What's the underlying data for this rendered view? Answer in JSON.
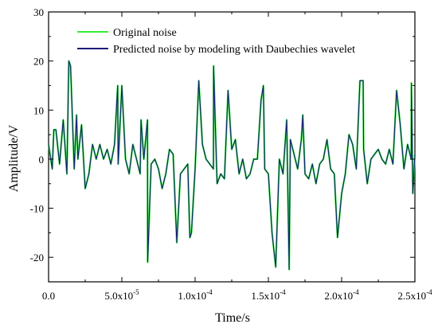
{
  "chart_data": {
    "type": "line",
    "xlabel": "Time/s",
    "ylabel": "Amplitude/V",
    "xlim": [
      0,
      0.00025
    ],
    "ylim": [
      -25,
      30
    ],
    "x_ticks": [
      {
        "value": 0,
        "label": "0.0",
        "mantissa": "",
        "exponent": ""
      },
      {
        "value": 5e-05,
        "label": "5.0x10-5",
        "mantissa": "5.0x10",
        "exponent": "-5"
      },
      {
        "value": 0.0001,
        "label": "1.0x10-4",
        "mantissa": "1.0x10",
        "exponent": "-4"
      },
      {
        "value": 0.00015,
        "label": "1.5x10-4",
        "mantissa": "1.5x10",
        "exponent": "-4"
      },
      {
        "value": 0.0002,
        "label": "2.0x10-4",
        "mantissa": "2.0x10",
        "exponent": "-4"
      },
      {
        "value": 0.00025,
        "label": "2.5x10-4",
        "mantissa": "2.5x10",
        "exponent": "-4"
      }
    ],
    "y_ticks": [
      {
        "value": 30,
        "label": "30"
      },
      {
        "value": 20,
        "label": "20"
      },
      {
        "value": 10,
        "label": "10"
      },
      {
        "value": 0,
        "label": "0"
      },
      {
        "value": -10,
        "label": "-10"
      },
      {
        "value": -20,
        "label": "-20"
      }
    ],
    "grid": false,
    "legend": "top-left",
    "series": [
      {
        "name": "Original noise",
        "color": "#33ee33",
        "x_start": 0,
        "x_step": 2.5e-06,
        "values": [
          3,
          -2,
          6,
          -1,
          8,
          -3,
          19,
          -2,
          0,
          7,
          -6,
          -3,
          3,
          0,
          3,
          0,
          2,
          -1,
          3,
          -1,
          15,
          0,
          -3,
          3,
          0,
          -3,
          0,
          8,
          -1,
          0,
          -2,
          -6,
          -3,
          2,
          1,
          -17,
          -3,
          -2,
          -1,
          -15,
          -2,
          16,
          3,
          0,
          -1,
          -2,
          -5,
          -3,
          -4,
          14,
          2,
          4,
          -3,
          0,
          -4,
          -3,
          0,
          0,
          12,
          -2,
          -3,
          -15,
          -22,
          0,
          -3,
          8,
          4,
          1,
          -2,
          4,
          -3,
          -4,
          -1,
          -5,
          -1,
          0,
          4,
          -2,
          -3,
          -15,
          -7,
          -3,
          5,
          3,
          -2,
          16,
          2,
          -5,
          0,
          1,
          2,
          0,
          -1,
          2,
          -1,
          14,
          7,
          -2,
          3,
          0,
          1
        ],
        "peaks": [
          {
            "x": 3.6e-06,
            "y": 6
          },
          {
            "x": 1.38e-05,
            "y": 20
          },
          {
            "x": 1.91e-05,
            "y": 9
          },
          {
            "x": 4.72e-05,
            "y": 15
          },
          {
            "x": 6.31e-05,
            "y": 8
          },
          {
            "x": 6.76e-05,
            "y": -21
          },
          {
            "x": 9.64e-05,
            "y": -16
          },
          {
            "x": 0.0001126,
            "y": 19
          },
          {
            "x": 0.0001278,
            "y": 3
          },
          {
            "x": 0.0001466,
            "y": 15
          },
          {
            "x": 0.0001642,
            "y": -22.5
          },
          {
            "x": 0.0001735,
            "y": 9
          },
          {
            "x": 0.0001972,
            "y": -16
          },
          {
            "x": 0.0002147,
            "y": 16
          },
          {
            "x": 0.0002476,
            "y": 15.5
          },
          {
            "x": 0.0002486,
            "y": -7
          }
        ]
      },
      {
        "name": "Predicted noise by modeling with Daubechies wavelet",
        "color": "#1a1a7a",
        "x_start": 0,
        "x_step": 2.5e-06,
        "values": [
          3,
          -2,
          6,
          -1,
          8,
          -3,
          19,
          -2,
          0,
          7,
          -6,
          -3,
          3,
          0,
          3,
          0,
          2,
          -1,
          3,
          -1,
          15,
          0,
          -3,
          3,
          0,
          -3,
          0,
          8,
          -1,
          0,
          -2,
          -6,
          -3,
          2,
          1,
          -17,
          -3,
          -2,
          -1,
          -15,
          -2,
          16,
          3,
          0,
          -1,
          -2,
          -5,
          -3,
          -4,
          14,
          2,
          4,
          -3,
          0,
          -4,
          -3,
          0,
          0,
          12,
          -2,
          -3,
          -15,
          -22,
          0,
          -3,
          8,
          4,
          1,
          -2,
          4,
          -3,
          -4,
          -1,
          -5,
          -1,
          0,
          4,
          -2,
          -3,
          -15,
          -7,
          -3,
          5,
          3,
          -2,
          16,
          2,
          -5,
          0,
          1,
          2,
          0,
          -1,
          2,
          -1,
          14,
          7,
          -2,
          3,
          0,
          1
        ],
        "peaks": [
          {
            "x": 3.6e-06,
            "y": 6
          },
          {
            "x": 1.38e-05,
            "y": 20
          },
          {
            "x": 1.91e-05,
            "y": 9
          },
          {
            "x": 4.72e-05,
            "y": 15
          },
          {
            "x": 6.31e-05,
            "y": 8
          },
          {
            "x": 6.76e-05,
            "y": -21
          },
          {
            "x": 9.64e-05,
            "y": -16
          },
          {
            "x": 0.0001126,
            "y": 19
          },
          {
            "x": 0.0001278,
            "y": 3
          },
          {
            "x": 0.0001466,
            "y": 15
          },
          {
            "x": 0.0001642,
            "y": -22.5
          },
          {
            "x": 0.0001735,
            "y": 9
          },
          {
            "x": 0.0001972,
            "y": -16
          },
          {
            "x": 0.0002147,
            "y": 16
          },
          {
            "x": 0.0002476,
            "y": 15.5
          },
          {
            "x": 0.0002486,
            "y": -7
          }
        ]
      }
    ]
  }
}
